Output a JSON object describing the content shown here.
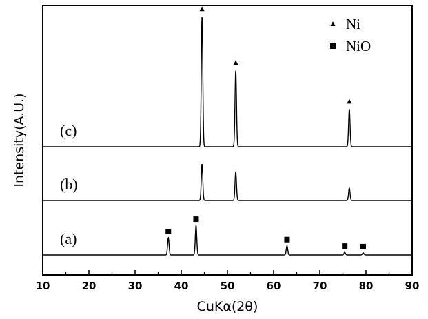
{
  "chart_data": {
    "type": "line",
    "xlabel": "CuKα(2θ)",
    "ylabel": "Intensity(A.U.)",
    "xlim": [
      10,
      90
    ],
    "x_ticks": [
      10,
      20,
      30,
      40,
      50,
      60,
      70,
      80,
      90
    ],
    "x_tick_labels": [
      "10",
      "20",
      "30",
      "40",
      "50",
      "60",
      "70",
      "80",
      "90"
    ],
    "grid": false,
    "legend": {
      "placement": "top-right",
      "entries": [
        {
          "marker": "triangle",
          "label": "Ni"
        },
        {
          "marker": "square",
          "label": "NiO"
        }
      ]
    },
    "series": [
      {
        "name": "(a)",
        "baseline": 0,
        "peaks": [
          {
            "x": 37.2,
            "height": 0.32,
            "phase": "NiO"
          },
          {
            "x": 43.2,
            "height": 0.55,
            "phase": "NiO"
          },
          {
            "x": 62.9,
            "height": 0.17,
            "phase": "NiO"
          },
          {
            "x": 75.4,
            "height": 0.05,
            "phase": "NiO"
          },
          {
            "x": 79.4,
            "height": 0.04,
            "phase": "NiO"
          }
        ]
      },
      {
        "name": "(b)",
        "baseline": 1,
        "peaks": [
          {
            "x": 44.5,
            "height": 0.68,
            "phase": "Ni"
          },
          {
            "x": 51.8,
            "height": 0.53,
            "phase": "Ni"
          },
          {
            "x": 76.4,
            "height": 0.23,
            "phase": "Ni"
          }
        ]
      },
      {
        "name": "(c)",
        "baseline": 2,
        "peaks": [
          {
            "x": 44.5,
            "height": 2.42,
            "phase": "Ni"
          },
          {
            "x": 51.8,
            "height": 1.42,
            "phase": "Ni"
          },
          {
            "x": 76.4,
            "height": 0.7,
            "phase": "Ni"
          }
        ]
      }
    ],
    "phase_markers": [
      {
        "series": "(a)",
        "x": 37.2,
        "marker": "square"
      },
      {
        "series": "(a)",
        "x": 43.2,
        "marker": "square"
      },
      {
        "series": "(a)",
        "x": 62.9,
        "marker": "square"
      },
      {
        "series": "(a)",
        "x": 75.4,
        "marker": "square"
      },
      {
        "series": "(a)",
        "x": 79.4,
        "marker": "square"
      },
      {
        "series": "(c)",
        "x": 44.5,
        "marker": "triangle"
      },
      {
        "series": "(c)",
        "x": 51.8,
        "marker": "triangle"
      },
      {
        "series": "(c)",
        "x": 76.4,
        "marker": "triangle"
      }
    ]
  }
}
